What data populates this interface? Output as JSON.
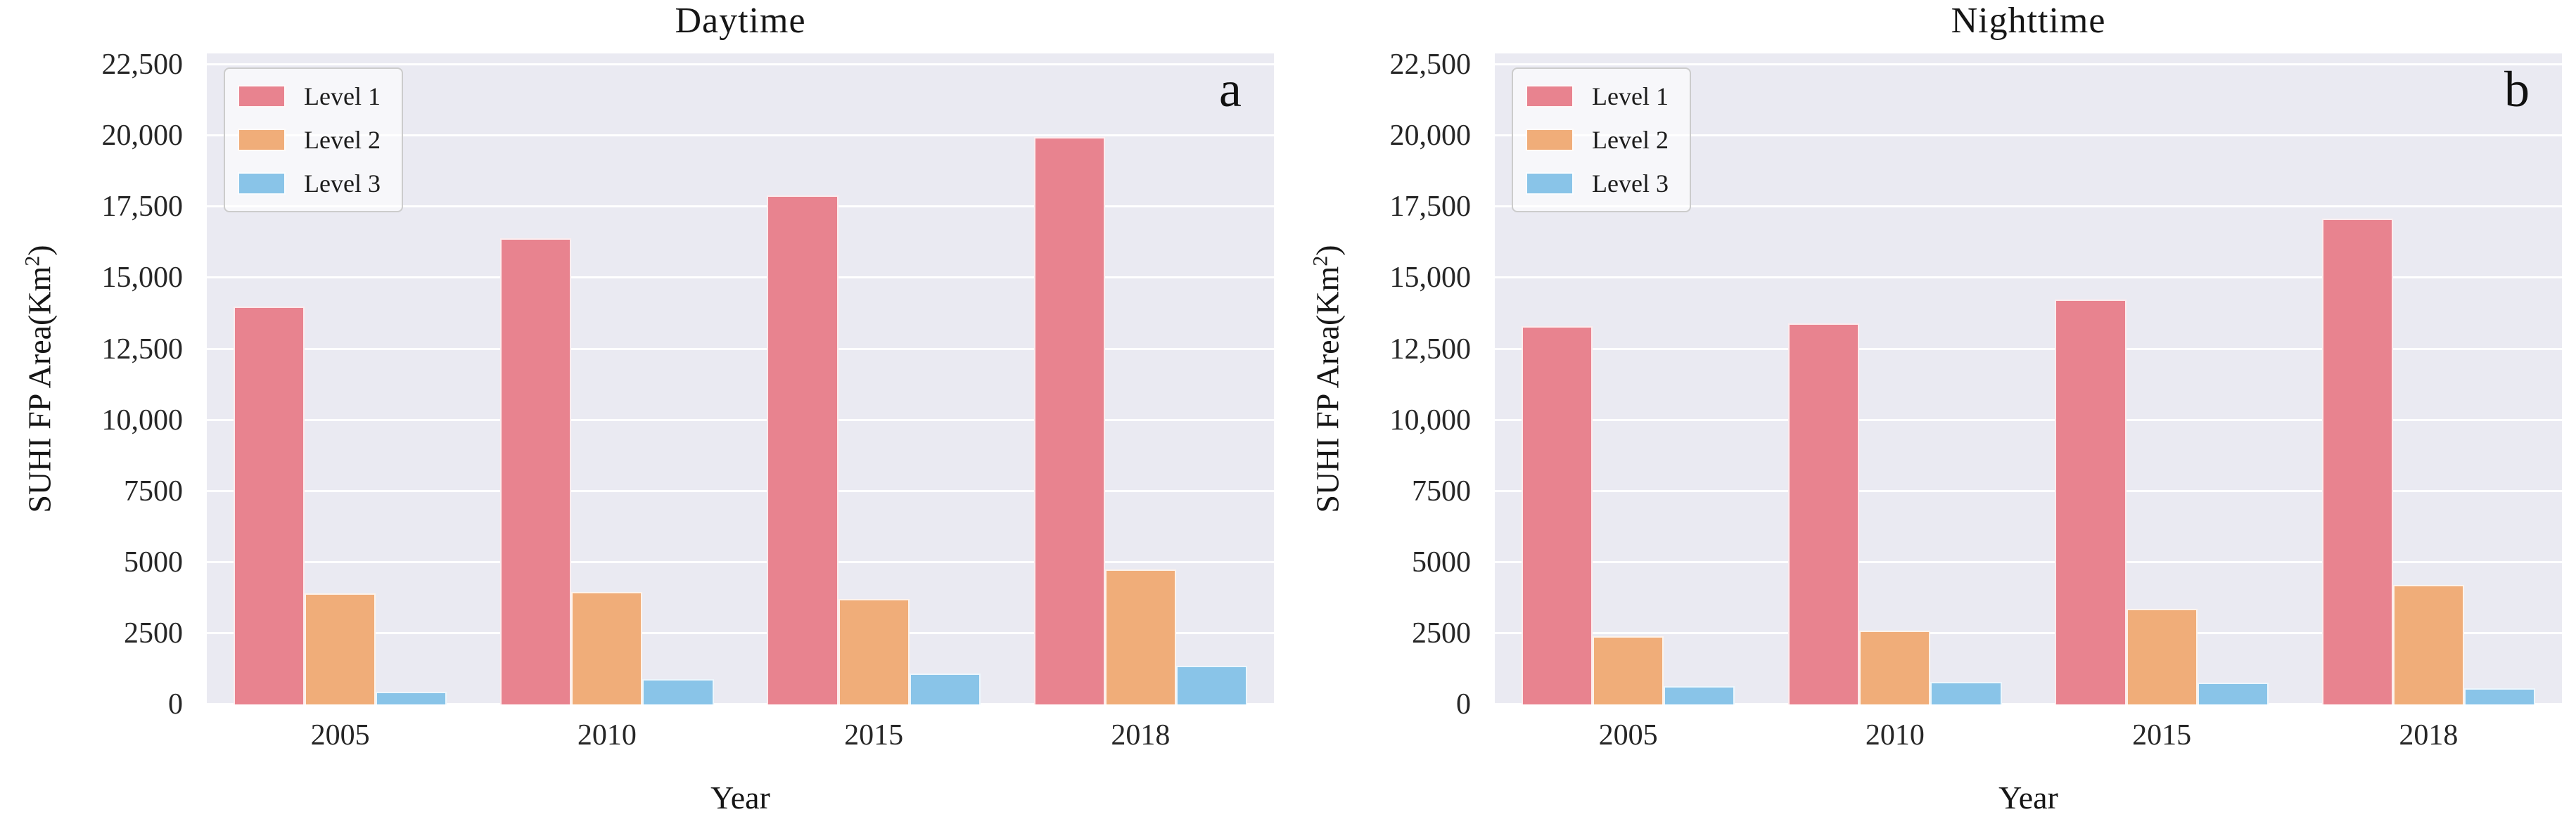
{
  "figure": {
    "background": "#ffffff",
    "plot_background": "#eaeaf2",
    "grid_color": "#ffffff",
    "text_color": "#1c1c1c"
  },
  "chart_data": [
    {
      "type": "bar",
      "panel_label": "a",
      "title": "Daytime",
      "xlabel": "Year",
      "ylabel": "SUHI FP Area(Km²)",
      "ylabel_main": "SUHI FP Area(Km",
      "ylabel_sup": "2",
      "ylabel_close": ")",
      "categories": [
        "2005",
        "2010",
        "2015",
        "2018"
      ],
      "series": [
        {
          "name": "Level 1",
          "color": "#e8838f",
          "values": [
            14000,
            16400,
            17900,
            19950
          ]
        },
        {
          "name": "Level 2",
          "color": "#f0ad79",
          "values": [
            3900,
            3950,
            3700,
            4750
          ]
        },
        {
          "name": "Level 3",
          "color": "#89c4e8",
          "values": [
            450,
            880,
            1100,
            1350
          ]
        }
      ],
      "ylim": [
        0,
        22900
      ],
      "yticks": [
        0,
        2500,
        5000,
        7500,
        10000,
        12500,
        15000,
        17500,
        20000,
        22500
      ],
      "ytick_labels": [
        "0",
        "2500",
        "5000",
        "7500",
        "10,000",
        "12,500",
        "15,000",
        "17,500",
        "20,000",
        "22,500"
      ],
      "grid": "horizontal",
      "legend_position": "upper-left",
      "legend_entries": [
        "Level 1",
        "Level 2",
        "Level 3"
      ]
    },
    {
      "type": "bar",
      "panel_label": "b",
      "title": "Nighttime",
      "xlabel": "Year",
      "ylabel": "SUHI FP Area(Km²)",
      "ylabel_main": "SUHI FP Area(Km",
      "ylabel_sup": "2",
      "ylabel_close": ")",
      "categories": [
        "2005",
        "2010",
        "2015",
        "2018"
      ],
      "series": [
        {
          "name": "Level 1",
          "color": "#e8838f",
          "values": [
            13300,
            13400,
            14250,
            17100
          ]
        },
        {
          "name": "Level 2",
          "color": "#f0ad79",
          "values": [
            2400,
            2600,
            3370,
            4200
          ]
        },
        {
          "name": "Level 3",
          "color": "#89c4e8",
          "values": [
            640,
            780,
            770,
            580
          ]
        }
      ],
      "ylim": [
        0,
        22900
      ],
      "yticks": [
        0,
        2500,
        5000,
        7500,
        10000,
        12500,
        15000,
        17500,
        20000,
        22500
      ],
      "ytick_labels": [
        "0",
        "2500",
        "5000",
        "7500",
        "10,000",
        "12,500",
        "15,000",
        "17,500",
        "20,000",
        "22,500"
      ],
      "grid": "horizontal",
      "legend_position": "upper-left",
      "legend_entries": [
        "Level 1",
        "Level 2",
        "Level 3"
      ]
    }
  ]
}
